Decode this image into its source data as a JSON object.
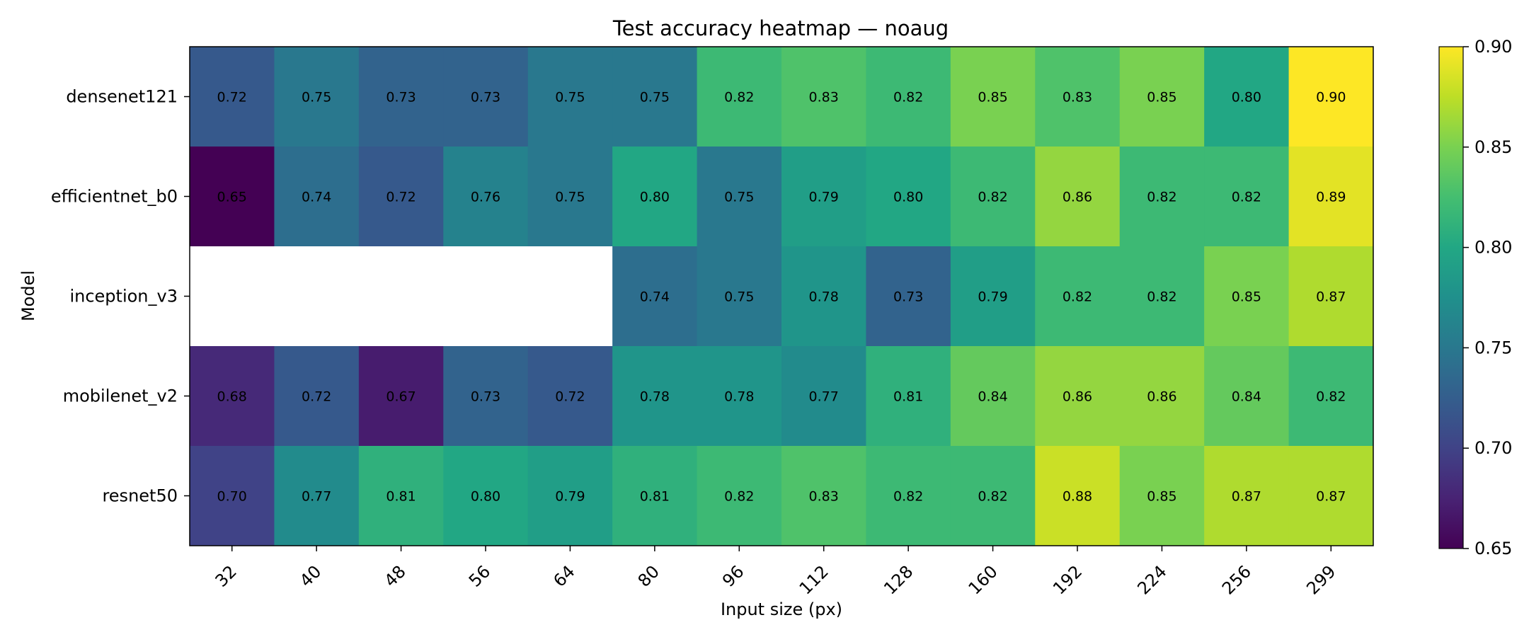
{
  "chart_data": {
    "type": "heatmap",
    "title": "Test accuracy heatmap — noaug",
    "xlabel": "Input size (px)",
    "ylabel": "Model",
    "x_categories": [
      "32",
      "40",
      "48",
      "56",
      "64",
      "80",
      "96",
      "112",
      "128",
      "160",
      "192",
      "224",
      "256",
      "299"
    ],
    "y_categories": [
      "densenet121",
      "efficientnet_b0",
      "inception_v3",
      "mobilenet_v2",
      "resnet50"
    ],
    "values": [
      [
        0.72,
        0.75,
        0.73,
        0.73,
        0.75,
        0.75,
        0.82,
        0.83,
        0.82,
        0.85,
        0.83,
        0.85,
        0.8,
        0.9
      ],
      [
        0.65,
        0.74,
        0.72,
        0.76,
        0.75,
        0.8,
        0.75,
        0.79,
        0.8,
        0.82,
        0.86,
        0.82,
        0.82,
        0.89
      ],
      [
        null,
        null,
        null,
        null,
        null,
        0.74,
        0.75,
        0.78,
        0.73,
        0.79,
        0.82,
        0.82,
        0.85,
        0.87
      ],
      [
        0.68,
        0.72,
        0.67,
        0.73,
        0.72,
        0.78,
        0.78,
        0.77,
        0.81,
        0.84,
        0.86,
        0.86,
        0.84,
        0.82
      ],
      [
        0.7,
        0.77,
        0.81,
        0.8,
        0.79,
        0.81,
        0.82,
        0.83,
        0.82,
        0.82,
        0.88,
        0.85,
        0.87,
        0.87
      ]
    ],
    "colormap": "viridis",
    "vmin": 0.65,
    "vmax": 0.9,
    "colorbar_ticks": [
      "0.65",
      "0.70",
      "0.75",
      "0.80",
      "0.85",
      "0.90"
    ],
    "missing_color": "#ffffff",
    "legend_placement": "colorbar-right"
  }
}
